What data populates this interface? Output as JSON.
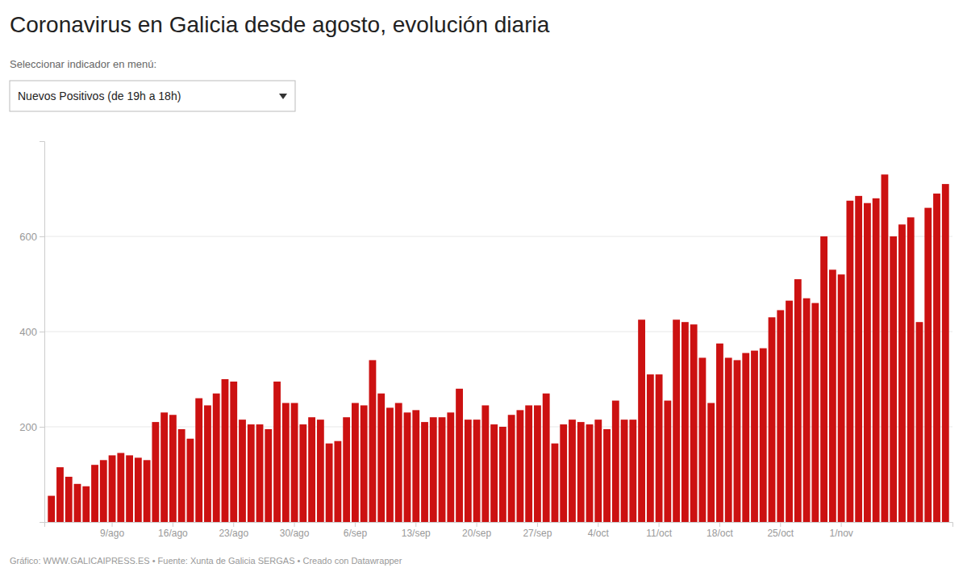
{
  "chart_data": {
    "type": "bar",
    "title": "Coronavirus en Galicia desde agosto, evolución diaria",
    "subtitle": "Seleccionar indicador en menú:",
    "annotations": [
      "Nuevos Positivos (de 19h a 18h)",
      "Gráfico: WWW.GALICAIPRESS.ES • Fuente: Xunta de Galicia SERGAS • Creado con Datawrapper"
    ],
    "color": "#cc1111",
    "ylim": [
      0,
      800
    ],
    "yticks": [
      200,
      400,
      600
    ],
    "grid": true,
    "categories": [
      null,
      null,
      null,
      null,
      null,
      null,
      null,
      "9/ago",
      null,
      null,
      null,
      null,
      null,
      null,
      "16/ago",
      null,
      null,
      null,
      null,
      null,
      null,
      "23/ago",
      null,
      null,
      null,
      null,
      null,
      null,
      "30/ago",
      null,
      null,
      null,
      null,
      null,
      null,
      "6/sep",
      null,
      null,
      null,
      null,
      null,
      null,
      "13/sep",
      null,
      null,
      null,
      null,
      null,
      null,
      "20/sep",
      null,
      null,
      null,
      null,
      null,
      null,
      "27/sep",
      null,
      null,
      null,
      null,
      null,
      null,
      "4/oct",
      null,
      null,
      null,
      null,
      null,
      null,
      "11/oct",
      null,
      null,
      null,
      null,
      null,
      null,
      "18/oct",
      null,
      null,
      null,
      null,
      null,
      null,
      "25/oct",
      null,
      null,
      null,
      null,
      null,
      null,
      "1/nov",
      null,
      null,
      null,
      null,
      null,
      null,
      null,
      null,
      null,
      null,
      null,
      null
    ],
    "values": [
      55,
      115,
      95,
      80,
      75,
      120,
      130,
      140,
      145,
      140,
      135,
      130,
      210,
      230,
      225,
      195,
      175,
      260,
      245,
      270,
      300,
      295,
      215,
      205,
      205,
      195,
      295,
      250,
      250,
      205,
      220,
      215,
      165,
      170,
      220,
      250,
      245,
      340,
      270,
      240,
      250,
      230,
      235,
      210,
      220,
      220,
      230,
      280,
      215,
      215,
      245,
      205,
      200,
      225,
      235,
      245,
      245,
      270,
      165,
      205,
      215,
      210,
      205,
      215,
      195,
      255,
      215,
      215,
      425,
      310,
      310,
      255,
      425,
      420,
      415,
      345,
      250,
      375,
      345,
      340,
      355,
      360,
      365,
      430,
      445,
      465,
      510,
      470,
      460,
      600,
      530,
      520,
      675,
      685,
      670,
      680,
      730,
      600,
      625,
      640,
      420,
      660,
      690,
      710
    ]
  }
}
